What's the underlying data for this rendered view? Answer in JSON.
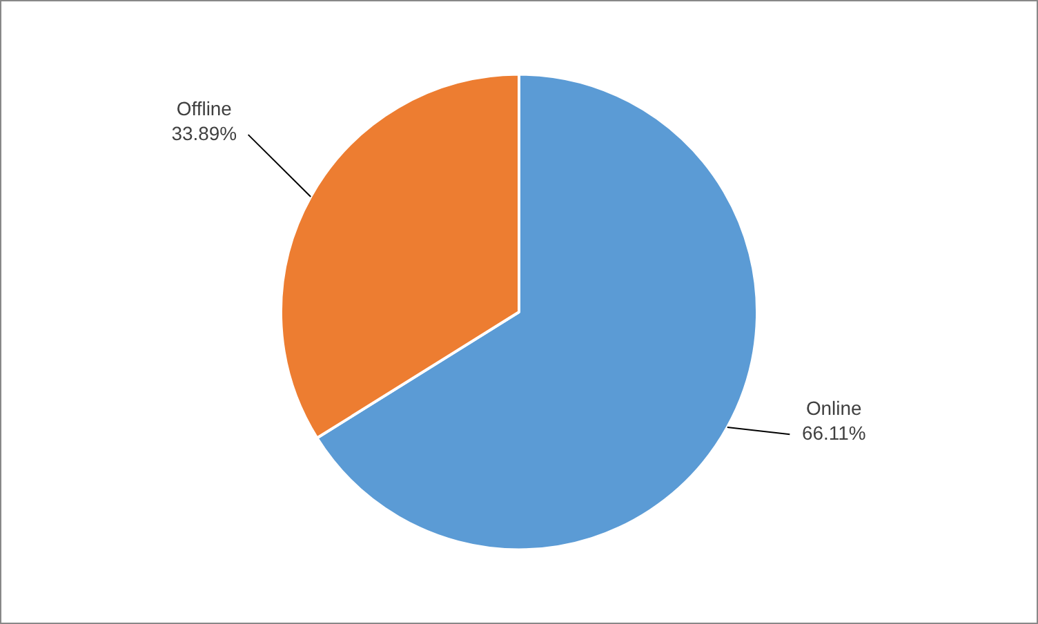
{
  "chart_data": {
    "type": "pie",
    "categories": [
      "Online",
      "Offline"
    ],
    "values": [
      66.11,
      33.89
    ],
    "colors": [
      "#5b9bd5",
      "#ed7d31"
    ],
    "value_labels": [
      "66.11%",
      "33.89%"
    ],
    "legend": false
  }
}
